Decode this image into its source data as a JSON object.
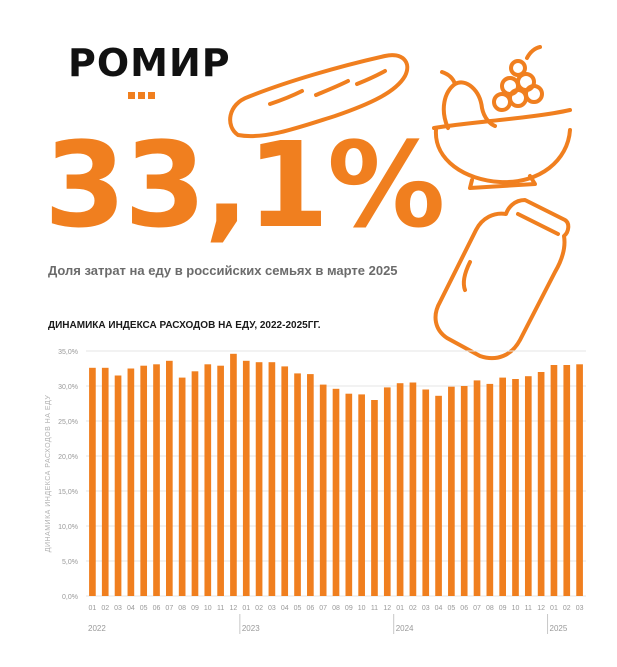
{
  "brand": {
    "logo_text": "РОМИР"
  },
  "headline": {
    "value": "33,1%",
    "caption": "Доля затрат на еду в российских семьях в марте 2025"
  },
  "illustrations": [
    "bread-icon",
    "fruit-bowl-icon",
    "milk-bottle-icon"
  ],
  "colors": {
    "accent": "#f07f1f",
    "text_dark": "#111111",
    "text_gray": "#6b6b6b",
    "grid": "#e4e4e4"
  },
  "chart_data": {
    "type": "bar",
    "title": "ДИНАМИКА ИНДЕКСА РАСХОДОВ  НА ЕДУ, 2022-2025ГГ.",
    "ylabel": "ДИНАМИКА ИНДЕКСА РАСХОДОВ НА ЕДУ",
    "ylim": [
      0,
      35
    ],
    "yticks": [
      "0,0%",
      "5,0%",
      "10,0%",
      "15,0%",
      "20,0%",
      "25,0%",
      "30,0%",
      "35,0%"
    ],
    "grid": true,
    "categories": [
      "01",
      "02",
      "03",
      "04",
      "05",
      "06",
      "07",
      "08",
      "09",
      "10",
      "11",
      "12",
      "01",
      "02",
      "03",
      "04",
      "05",
      "06",
      "07",
      "08",
      "09",
      "10",
      "11",
      "12",
      "01",
      "02",
      "03",
      "04",
      "05",
      "06",
      "07",
      "08",
      "09",
      "10",
      "11",
      "12",
      "01",
      "02",
      "03"
    ],
    "years": [
      {
        "label": "2022",
        "start": 0,
        "count": 12
      },
      {
        "label": "2023",
        "start": 12,
        "count": 12
      },
      {
        "label": "2024",
        "start": 24,
        "count": 12
      },
      {
        "label": "2025",
        "start": 36,
        "count": 3
      }
    ],
    "values": [
      32.6,
      32.6,
      31.5,
      32.5,
      32.9,
      33.1,
      33.6,
      31.2,
      32.1,
      33.1,
      32.9,
      34.6,
      33.6,
      33.4,
      33.4,
      32.8,
      31.8,
      31.7,
      30.2,
      29.6,
      28.9,
      28.8,
      28.0,
      29.8,
      30.4,
      30.5,
      29.5,
      28.6,
      29.9,
      30.0,
      30.8,
      30.3,
      31.2,
      31.0,
      31.4,
      32.0,
      33.0,
      33.0,
      33.1
    ]
  }
}
